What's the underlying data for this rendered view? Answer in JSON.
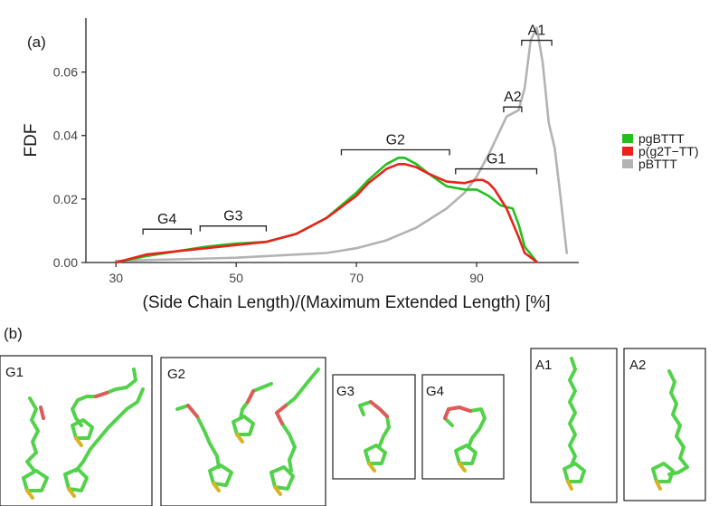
{
  "chart_data": {
    "type": "line",
    "panel_label": "(a)",
    "xlabel": "(Side Chain Length)/(Maximum Extended Length) [%]",
    "ylabel": "FDF",
    "xlim": [
      25,
      107
    ],
    "ylim": [
      0,
      0.077
    ],
    "xticks": [
      "30",
      "50",
      "70",
      "90"
    ],
    "yticks": [
      "0.00",
      "0.02",
      "0.04",
      "0.06"
    ],
    "grid": false,
    "legend_position": "right",
    "series": [
      {
        "name": "pgBTTT",
        "color": "#22c01e",
        "x": [
          30,
          35,
          40,
          45,
          50,
          55,
          60,
          65,
          70,
          72,
          75,
          77,
          78,
          80,
          82,
          85,
          88,
          90,
          92,
          94,
          95,
          96,
          97,
          98,
          100
        ],
        "y": [
          0.0,
          0.002,
          0.0035,
          0.005,
          0.006,
          0.0065,
          0.009,
          0.014,
          0.022,
          0.026,
          0.031,
          0.033,
          0.033,
          0.031,
          0.028,
          0.024,
          0.023,
          0.023,
          0.021,
          0.018,
          0.0175,
          0.017,
          0.012,
          0.005,
          0.0002
        ]
      },
      {
        "name": "p(g2T−TT)",
        "color": "#e8231c",
        "x": [
          30,
          35,
          40,
          45,
          50,
          55,
          60,
          65,
          70,
          72,
          75,
          77,
          78,
          80,
          82,
          85,
          88,
          90,
          91,
          92,
          93,
          95,
          97,
          98,
          100
        ],
        "y": [
          0.0,
          0.0025,
          0.0035,
          0.0045,
          0.0055,
          0.0065,
          0.009,
          0.014,
          0.021,
          0.025,
          0.0295,
          0.031,
          0.031,
          0.03,
          0.028,
          0.0255,
          0.025,
          0.026,
          0.026,
          0.025,
          0.023,
          0.017,
          0.008,
          0.003,
          0.0002
        ]
      },
      {
        "name": "pBTTT",
        "color": "#b3b3b3",
        "x": [
          30,
          40,
          50,
          60,
          65,
          70,
          75,
          80,
          85,
          88,
          90,
          92,
          94,
          95,
          96,
          97,
          98,
          99,
          100,
          101,
          102,
          103,
          104,
          105
        ],
        "y": [
          0.0005,
          0.001,
          0.0015,
          0.0025,
          0.003,
          0.0045,
          0.007,
          0.011,
          0.017,
          0.022,
          0.027,
          0.034,
          0.042,
          0.046,
          0.047,
          0.048,
          0.055,
          0.07,
          0.074,
          0.063,
          0.044,
          0.036,
          0.02,
          0.003
        ]
      }
    ],
    "annotations": [
      {
        "label": "A1",
        "x0": 97.5,
        "x1": 102.5,
        "y": 0.07
      },
      {
        "label": "A2",
        "x0": 94.5,
        "x1": 97.5,
        "y": 0.049
      },
      {
        "label": "G2",
        "x0": 67.5,
        "x1": 85.5,
        "y": 0.0355
      },
      {
        "label": "G1",
        "x0": 86.5,
        "x1": 100,
        "y": 0.0295
      },
      {
        "label": "G4",
        "x0": 34.5,
        "x1": 42.5,
        "y": 0.0105
      },
      {
        "label": "G3",
        "x0": 44,
        "x1": 55,
        "y": 0.0115
      }
    ]
  },
  "panel_b": {
    "label": "(b)",
    "boxes": [
      "G1",
      "G2",
      "G3",
      "G4",
      "A1",
      "A2"
    ]
  }
}
